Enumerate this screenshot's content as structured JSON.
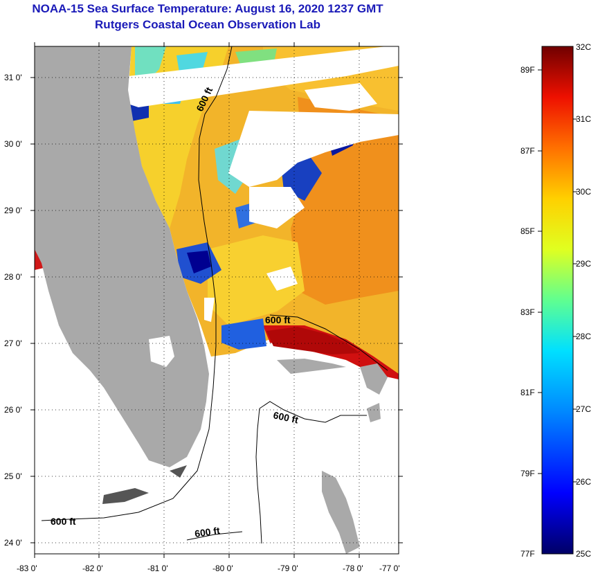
{
  "header": {
    "title": "NOAA-15 Sea Surface Temperature:  August 16, 2020 1237 GMT",
    "subtitle": "Rutgers Coastal Ocean Observation Lab"
  },
  "map": {
    "lon_ticks": [
      "-83 0'",
      "-82 0'",
      "-81 0'",
      "-80 0'",
      "-79 0'",
      "-78 0'",
      "-77 0'"
    ],
    "lat_ticks": [
      "31 0'",
      "30 0'",
      "29 0'",
      "28 0'",
      "27 0'",
      "26 0'",
      "25 0'",
      "24 0'"
    ],
    "contour_labels": [
      "600 ft",
      "600 ft",
      "600 ft",
      "600 ft",
      "600 ft"
    ],
    "colors": {
      "land": "#a9a9a9",
      "no_data": "#ffffff",
      "gridline": "#000000"
    }
  },
  "colorbar": {
    "celsius_ticks": [
      "32C",
      "31C",
      "30C",
      "29C",
      "28C",
      "27C",
      "26C",
      "25C"
    ],
    "fahrenheit_ticks": [
      "89F",
      "87F",
      "85F",
      "83F",
      "81F",
      "79F",
      "77F"
    ],
    "gradient": [
      "#000080",
      "#0000ff",
      "#0080ff",
      "#00ffff",
      "#80ff80",
      "#ffff00",
      "#ff8000",
      "#ff0000",
      "#800000"
    ]
  }
}
